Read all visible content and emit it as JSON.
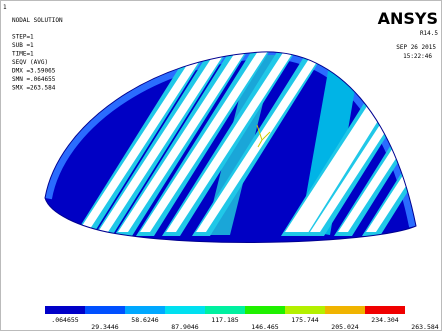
{
  "window_number": "1",
  "info": [
    "NODAL SOLUTION",
    "STEP=1",
    "SUB =1",
    "TIME=1",
    "SEQV      (AVG)",
    "DMX =3.59065",
    "SMN =.064655",
    "SMX =263.584"
  ],
  "brand": {
    "name": "ANSYS",
    "version": "R14.5",
    "date": "SEP 26 2015",
    "time": "15:22:46"
  },
  "legend": {
    "upper_labels": [
      ".064655",
      "58.6246",
      "117.185",
      "175.744",
      "234.304"
    ],
    "lower_labels": [
      "29.3446",
      "87.9046",
      "146.465",
      "205.024",
      "263.584"
    ]
  }
}
